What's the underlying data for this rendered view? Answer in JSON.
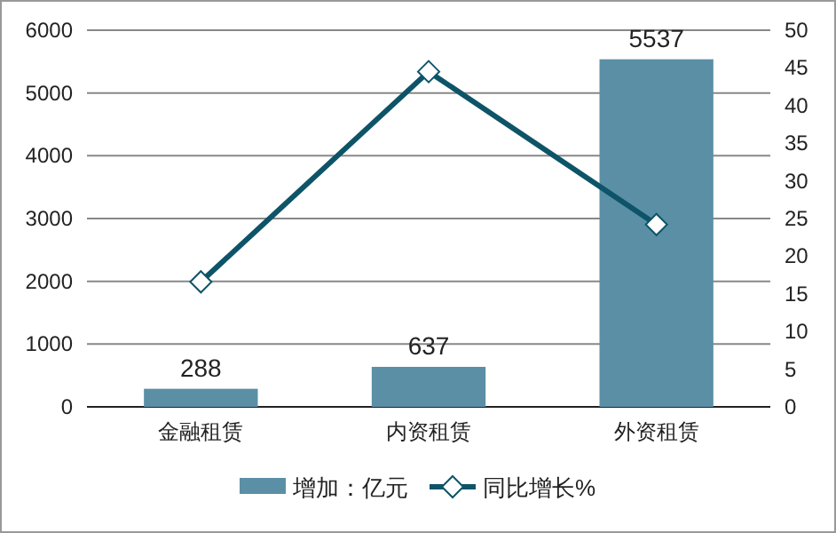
{
  "chart_data": {
    "type": "bar",
    "categories": [
      "金融租赁",
      "内资租赁",
      "外资租赁"
    ],
    "series": [
      {
        "name": "增加：亿元",
        "color": "#5b8fa6",
        "values": [
          288,
          637,
          5537
        ],
        "value_labels": [
          "288",
          "637",
          "5537"
        ]
      },
      {
        "name": "同比增长%",
        "type": "line",
        "axis": "y2",
        "color": "#0e5468",
        "marker": "diamond",
        "values": [
          16.6,
          44.5,
          24.2
        ]
      }
    ],
    "ylim": [
      0,
      6000
    ],
    "yticks": [
      0,
      1000,
      2000,
      3000,
      4000,
      5000,
      6000
    ],
    "y2lim": [
      0,
      50
    ],
    "y2ticks": [
      0,
      5,
      10,
      15,
      20,
      25,
      30,
      35,
      40,
      45,
      50
    ],
    "grid": "y",
    "legend": "bottom"
  }
}
